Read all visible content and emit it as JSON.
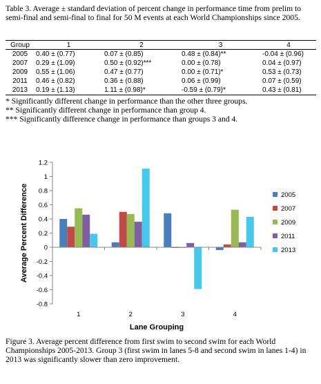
{
  "table": {
    "caption": "Table 3. Average ± standard deviation of percent change in performance time from prelim to semi-final and semi-final to final for 50 M events at each World Championships since 2005.",
    "headers": [
      "Group",
      "1",
      "2",
      "3",
      "4"
    ],
    "rows": [
      {
        "year": "2005",
        "c1": "0.40 ± (0.77)",
        "c2": "0.07 ± (0.85)",
        "c3": "0.48 ± (0.84)**",
        "c4": "-0.04 ± (0.96)"
      },
      {
        "year": "2007",
        "c1": "0.29 ± (1.09)",
        "c2": "0.50 ± (0.92)***",
        "c3": "0.00 ± (0.78)",
        "c4": "0.04 ± (0.97)"
      },
      {
        "year": "2009",
        "c1": "0.55 ± (1.06)",
        "c2": "0.47 ± (0.77)",
        "c3": "0.00 ± (0.71)*",
        "c4": "0.53 ± (0.73)"
      },
      {
        "year": "2011",
        "c1": "0.46 ± (0.82)",
        "c2": "0.36 ± (0.88)",
        "c3": "0.06 ± (0.99)",
        "c4": "0.07 ± (0.59)"
      },
      {
        "year": "2013",
        "c1": "0.19 ± (1.13)",
        "c2": "1.11 ± (0.98)*",
        "c3": "-0.59 ± (0.79)*",
        "c4": "0.43 ± (0.81)"
      }
    ]
  },
  "notes": [
    "* Significantly different change in performance than the other three groups.",
    "** Significantly different change in performance than group 4.",
    "*** Significantly difference change in performance than groups 3 and 4."
  ],
  "chart_data": {
    "type": "bar",
    "categories": [
      "1",
      "2",
      "3",
      "4"
    ],
    "xlabel": "Lane Grouping",
    "ylabel": "Average Percent Difference",
    "ylim": [
      -0.8,
      1.2
    ],
    "yticks": [
      "1.2",
      "1",
      "0.8",
      "0.6",
      "0.4",
      "0.2",
      "0",
      "-0.2",
      "-0.4",
      "-0.6",
      "-0.8"
    ],
    "grid": false,
    "legend_position": "right",
    "series": [
      {
        "name": "2005",
        "color": "#4A7EBB",
        "values": [
          0.4,
          0.07,
          0.48,
          -0.04
        ]
      },
      {
        "name": "2007",
        "color": "#BE4B48",
        "values": [
          0.29,
          0.5,
          0.0,
          0.04
        ]
      },
      {
        "name": "2009",
        "color": "#98B954",
        "values": [
          0.55,
          0.47,
          0.0,
          0.53
        ]
      },
      {
        "name": "2011",
        "color": "#7D60A0",
        "values": [
          0.46,
          0.36,
          0.06,
          0.07
        ]
      },
      {
        "name": "2013",
        "color": "#46C7EC",
        "values": [
          0.19,
          1.11,
          -0.59,
          0.43
        ]
      }
    ]
  },
  "figure": {
    "caption": "Figure 3. Average percent difference from first swim to second swim for each World Championships 2005-2013.  Group 3 (first swim in lanes 5-8 and second swim in lanes 1-4) in 2013 was significantly slower than zero improvement."
  }
}
